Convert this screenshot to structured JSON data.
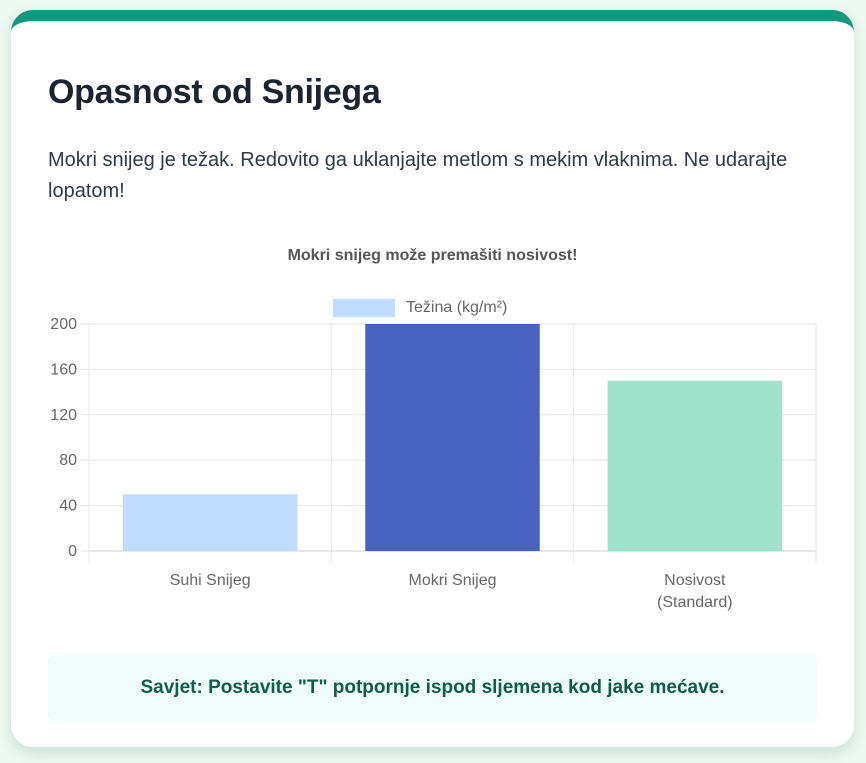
{
  "card": {
    "title": "Opasnost od Snijega",
    "description": "Mokri snijeg je težak. Redovito ga uklanjajte metlom s mekim vlaknima. Ne udarajte lopatom!",
    "tip": "Savjet: Postavite \"T\" potpornje ispod sljemena kod jake mećave.",
    "accent_color": "#14967f"
  },
  "chart_data": {
    "type": "bar",
    "title": "Mokri snijeg može premašiti nosivost!",
    "categories": [
      "Suhi Snijeg",
      "Mokri Snijeg",
      "Nosivost (Standard)"
    ],
    "category_lines": [
      [
        "Suhi Snijeg"
      ],
      [
        "Mokri Snijeg"
      ],
      [
        "Nosivost",
        "(Standard)"
      ]
    ],
    "series": [
      {
        "name": "Težina (kg/m²)",
        "values": [
          50,
          200,
          150
        ],
        "colors": [
          "#bfdbfe",
          "#4863be",
          "#a0e2cb"
        ]
      }
    ],
    "legend": [
      "Težina (kg/m²)"
    ],
    "legend_position": "top",
    "xlabel": "",
    "ylabel": "",
    "ylim": [
      0,
      200
    ],
    "yticks": [
      0,
      40,
      80,
      120,
      160,
      200
    ],
    "grid": true
  }
}
